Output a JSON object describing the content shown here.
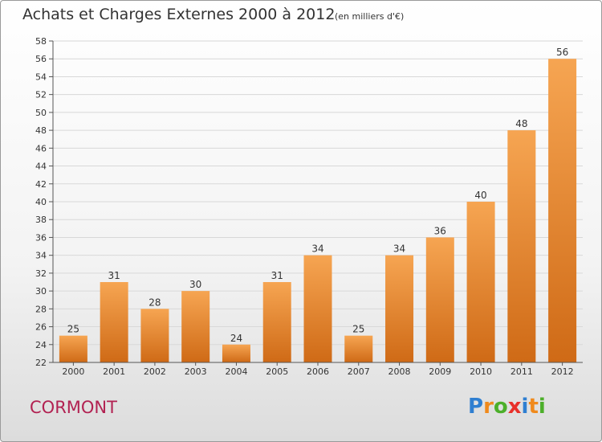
{
  "header": {
    "title": "Achats et Charges Externes 2000 à 2012",
    "unit": "(en milliers d'€)"
  },
  "footer": {
    "town": "CORMONT",
    "logo_letters": [
      "P",
      "r",
      "o",
      "x",
      "i",
      "t",
      "i"
    ],
    "logo_colors": [
      "#2f7fd1",
      "#f08a1c",
      "#4caf2a",
      "#e8302a",
      "#2f7fd1",
      "#f08a1c",
      "#4caf2a"
    ]
  },
  "colors": {
    "bar_light": "#f6a552",
    "bar_dark": "#cf6a16",
    "grid": "#d8d8d8",
    "axis": "#555555"
  },
  "chart_data": {
    "type": "bar",
    "title": "Achats et Charges Externes 2000 à 2012",
    "subtitle": "(en milliers d'€)",
    "xlabel": "",
    "ylabel": "",
    "categories": [
      "2000",
      "2001",
      "2002",
      "2003",
      "2004",
      "2005",
      "2006",
      "2007",
      "2008",
      "2009",
      "2010",
      "2011",
      "2012"
    ],
    "values": [
      25,
      31,
      28,
      30,
      24,
      31,
      34,
      25,
      34,
      36,
      40,
      48,
      56
    ],
    "ylim": [
      22,
      58
    ],
    "yticks": [
      22,
      24,
      26,
      28,
      30,
      32,
      34,
      36,
      38,
      40,
      42,
      44,
      46,
      48,
      50,
      52,
      54,
      56,
      58
    ],
    "grid": true,
    "legend": "none"
  }
}
